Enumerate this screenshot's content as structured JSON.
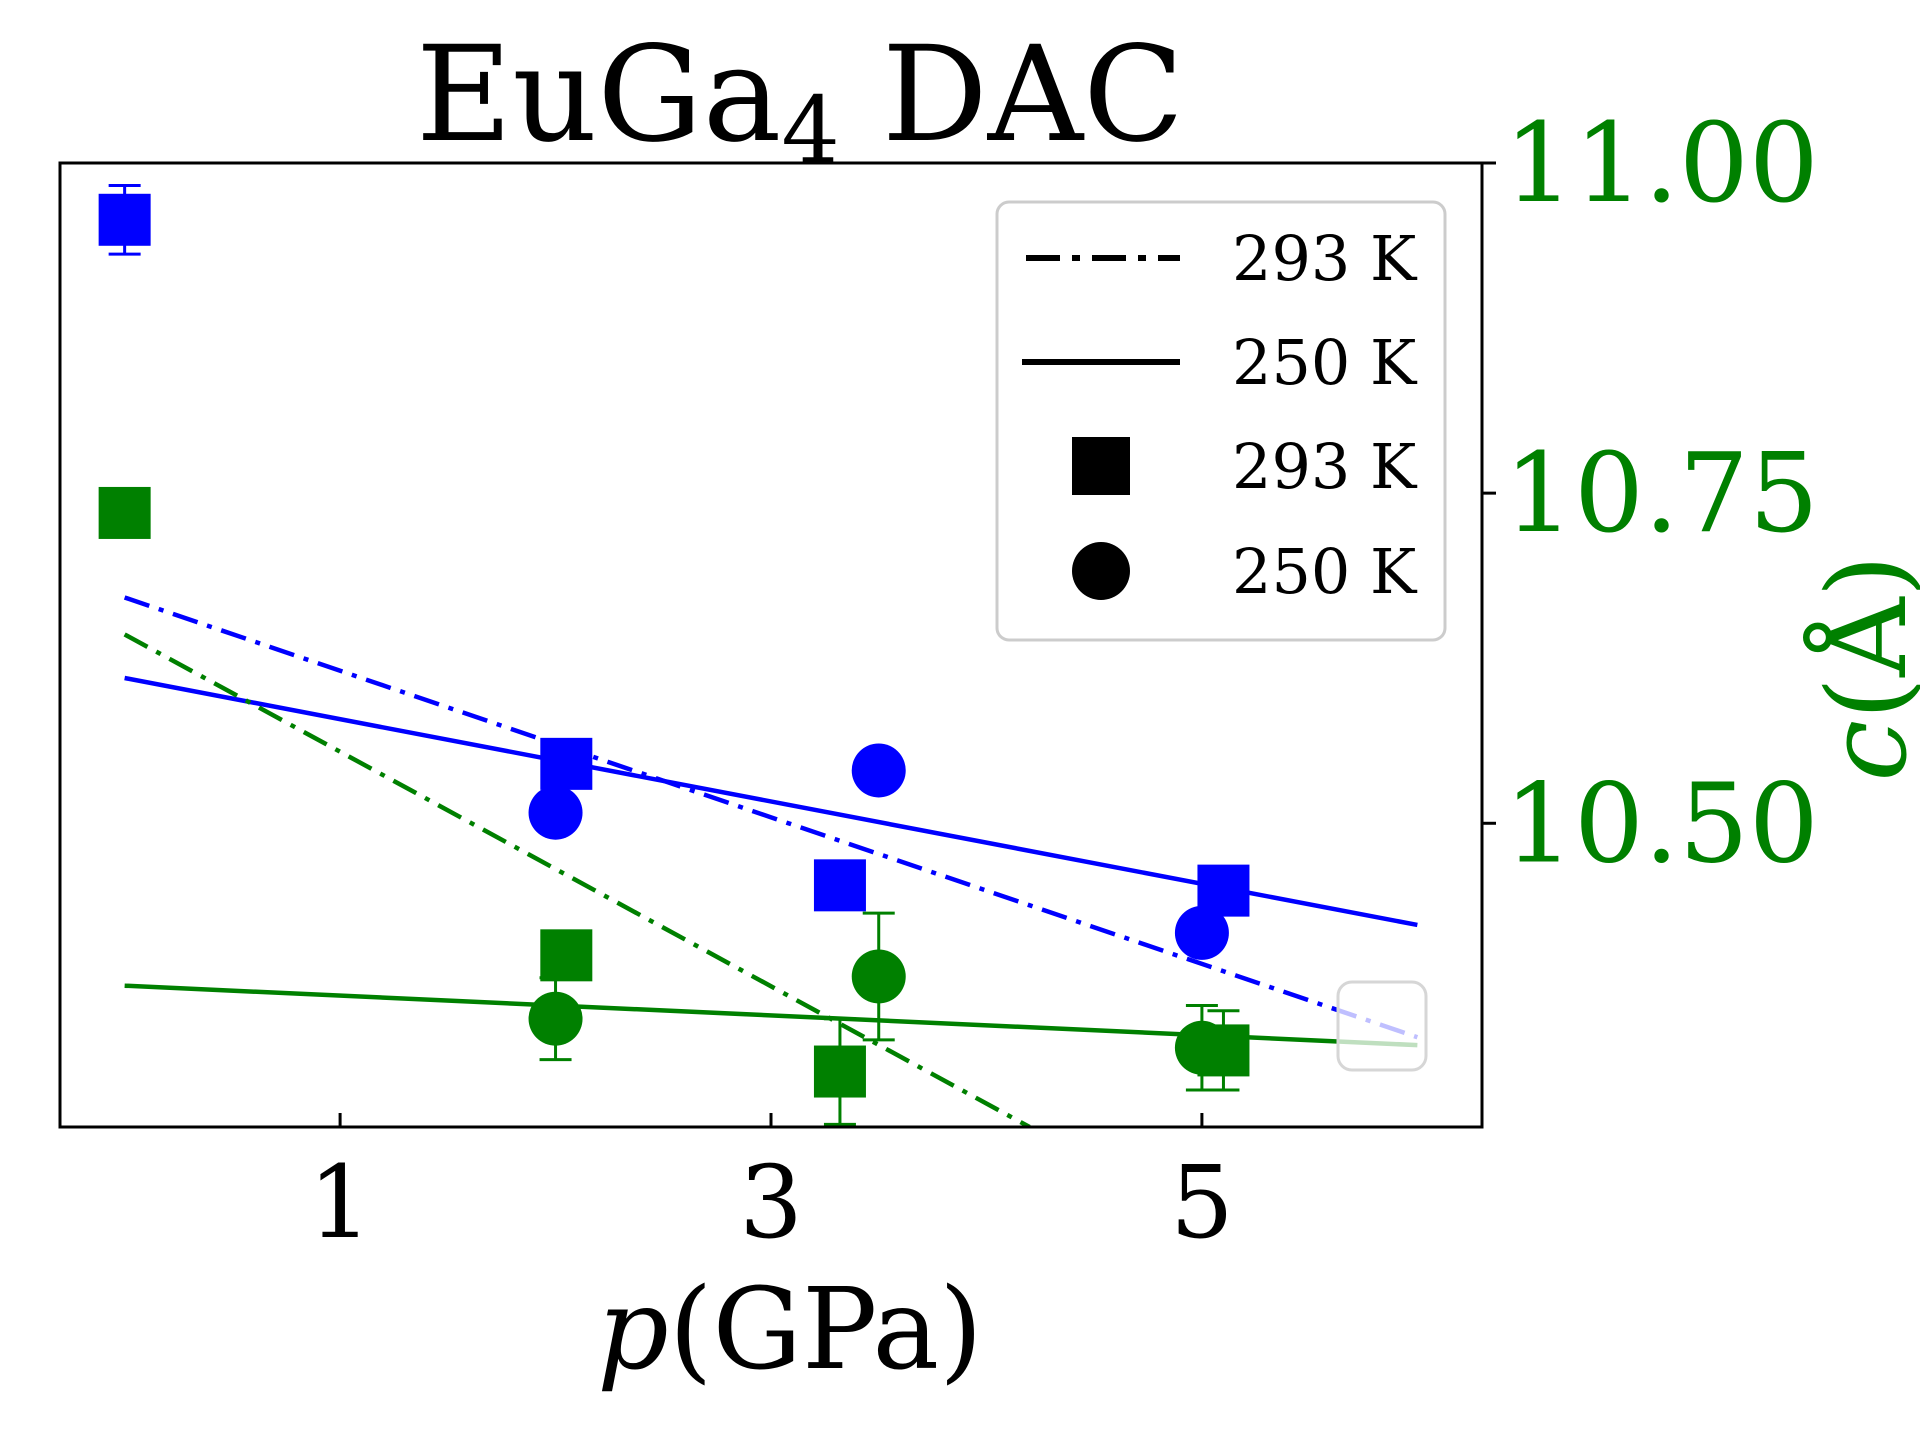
{
  "chart_data": {
    "type": "scatter",
    "title": "EuGa",
    "title_subscript": "4",
    "title_suffix": " DAC",
    "xlabel_italic": "p",
    "xlabel_rest": "(GPa)",
    "ylabel_right_italic": "c",
    "ylabel_right_rest": "(Å)",
    "xlim": [
      -0.3,
      6.3
    ],
    "x_ticks": [
      1,
      3,
      5
    ],
    "x_tick_labels": [
      "1",
      "3",
      "5"
    ],
    "y_right_lim": [
      10.27,
      11.0
    ],
    "y_right_ticks": [
      10.5,
      10.75,
      11.0
    ],
    "y_right_tick_labels": [
      "10.50",
      "10.75",
      "11.00"
    ],
    "legend": {
      "placement": "top-right",
      "entries": [
        {
          "label": "293 K",
          "marker": "dash-dot-line"
        },
        {
          "label": "250 K",
          "marker": "solid-line"
        },
        {
          "label": "293 K",
          "marker": "square"
        },
        {
          "label": "250 K",
          "marker": "circle"
        }
      ]
    },
    "colors": {
      "blue": "#0000ff",
      "green": "#008000",
      "axis": "#000000"
    },
    "series": [
      {
        "color": "blue",
        "marker": "square",
        "temperature": "293 K",
        "points": [
          {
            "x": 0.0,
            "y": 10.957,
            "err": 0.026
          },
          {
            "x": 2.05,
            "y": 10.545
          },
          {
            "x": 3.32,
            "y": 10.453
          },
          {
            "x": 5.1,
            "y": 10.449
          }
        ]
      },
      {
        "color": "blue",
        "marker": "circle",
        "temperature": "250 K",
        "points": [
          {
            "x": 2.0,
            "y": 10.508
          },
          {
            "x": 3.5,
            "y": 10.54
          },
          {
            "x": 5.0,
            "y": 10.417
          }
        ]
      },
      {
        "color": "green",
        "marker": "square",
        "temperature": "293 K",
        "points": [
          {
            "x": 0.0,
            "y": 10.735
          },
          {
            "x": 2.05,
            "y": 10.4
          },
          {
            "x": 3.32,
            "y": 10.312,
            "err": 0.04
          },
          {
            "x": 5.1,
            "y": 10.328,
            "err": 0.03
          }
        ]
      },
      {
        "color": "green",
        "marker": "circle",
        "temperature": "250 K",
        "points": [
          {
            "x": 2.0,
            "y": 10.352,
            "err": 0.031
          },
          {
            "x": 3.5,
            "y": 10.384,
            "err": 0.048
          },
          {
            "x": 5.0,
            "y": 10.33,
            "err": 0.032
          }
        ]
      },
      {
        "color": "blue",
        "line": "dash-dot",
        "temperature": "293 K",
        "points": [
          {
            "x": 0.0,
            "y": 10.671
          },
          {
            "x": 6.0,
            "y": 10.338
          }
        ]
      },
      {
        "color": "blue",
        "line": "solid",
        "temperature": "250 K",
        "points": [
          {
            "x": 0.0,
            "y": 10.61
          },
          {
            "x": 6.0,
            "y": 10.423
          }
        ]
      },
      {
        "color": "green",
        "line": "dash-dot",
        "temperature": "293 K",
        "points": [
          {
            "x": 0.0,
            "y": 10.643
          },
          {
            "x": 4.2,
            "y": 10.27
          }
        ]
      },
      {
        "color": "green",
        "line": "solid",
        "temperature": "250 K",
        "points": [
          {
            "x": 0.0,
            "y": 10.377
          },
          {
            "x": 6.0,
            "y": 10.332
          }
        ]
      }
    ]
  }
}
